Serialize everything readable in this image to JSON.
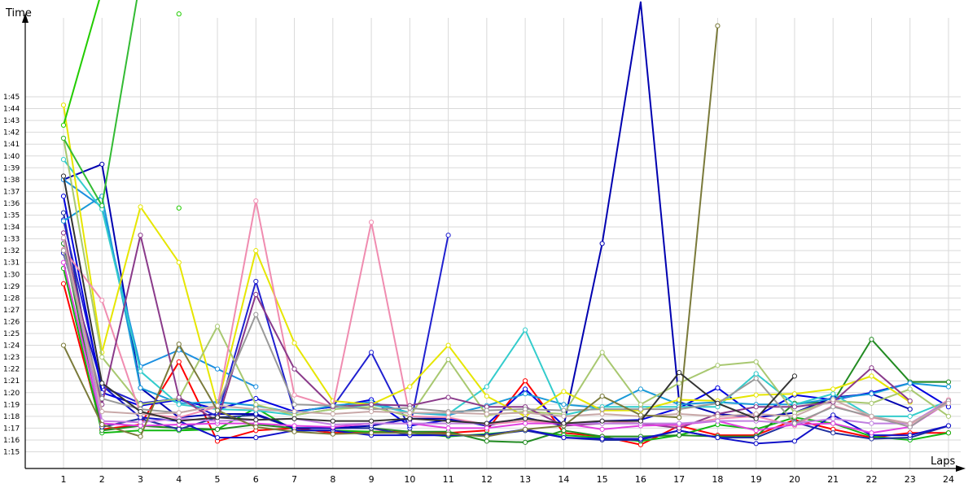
{
  "chart_data": {
    "type": "line",
    "xlabel": "Laps",
    "ylabel": "Time",
    "x": [
      1,
      2,
      3,
      4,
      5,
      6,
      7,
      8,
      9,
      10,
      11,
      12,
      13,
      14,
      15,
      16,
      17,
      18,
      19,
      20,
      21,
      22,
      23,
      24
    ],
    "y_ticks": [
      "1:15",
      "1:16",
      "1:17",
      "1:18",
      "1:19",
      "1:20",
      "1:21",
      "1:22",
      "1:23",
      "1:24",
      "1:25",
      "1:26",
      "1:27",
      "1:28",
      "1:29",
      "1:30",
      "1:31",
      "1:32",
      "1:33",
      "1:34",
      "1:35",
      "1:36",
      "1:37",
      "1:38",
      "1:39",
      "1:40",
      "1:41",
      "1:42",
      "1:43",
      "1:44",
      "1:45"
    ],
    "ylim_seconds": [
      74,
      106.5
    ],
    "grid": true,
    "series": [
      {
        "color": "#ff0000",
        "values": [
          89.2,
          76.9,
          77.3,
          82.6,
          75.9,
          76.8,
          77.0,
          76.6,
          76.7,
          76.7,
          76.6,
          76.8,
          81.0,
          76.6,
          76.3,
          75.6,
          77.2,
          76.4,
          76.4,
          77.7,
          76.9,
          76.2,
          76.6,
          76.6
        ]
      },
      {
        "color": "#11b811",
        "values": [
          90.5,
          76.6,
          76.8,
          76.8,
          76.9,
          78.7,
          76.8,
          76.8,
          76.7,
          76.6,
          76.3,
          76.5,
          76.8,
          76.4,
          76.2,
          75.9,
          76.4,
          77.3,
          76.9,
          77.9,
          77.4,
          76.3,
          76.0,
          76.6
        ]
      },
      {
        "color": "#228b22",
        "values": [
          92.6,
          76.8,
          77.2,
          77.0,
          76.9,
          77.3,
          77.0,
          77.0,
          77.0,
          76.7,
          76.7,
          75.9,
          75.8,
          76.8,
          76.3,
          76.3,
          76.4,
          76.3,
          76.3,
          79.1,
          79.2,
          84.5,
          80.9,
          80.9
        ]
      },
      {
        "color": "#1f2f9f",
        "values": [
          95.2,
          77.1,
          77.8,
          76.9,
          77.9,
          78.1,
          77.0,
          77.0,
          77.0,
          76.4,
          76.4,
          76.4,
          76.8,
          76.2,
          76.0,
          76.0,
          76.8,
          76.2,
          76.2,
          77.5,
          76.6,
          76.1,
          76.2,
          77.2
        ]
      },
      {
        "color": "#1010c8",
        "values": [
          91.8,
          80.6,
          77.9,
          77.6,
          76.2,
          76.2,
          76.8,
          76.8,
          76.4,
          76.4,
          76.4,
          76.4,
          76.9,
          76.2,
          76.1,
          76.1,
          76.8,
          76.2,
          75.7,
          75.9,
          78.1,
          76.4,
          76.4,
          77.2
        ]
      },
      {
        "color": "#0000b0",
        "values": [
          98.0,
          99.3,
          80.4,
          77.9,
          78.2,
          78.2,
          77.0,
          77.0,
          77.2,
          77.8,
          77.8,
          77.2,
          77.9,
          77.2,
          92.6,
          113.0,
          79.2,
          78.2,
          77.9,
          78.3,
          79.6,
          79.9,
          78.6,
          null
        ]
      },
      {
        "color": "#2020d0",
        "values": [
          94.6,
          80.5,
          79.1,
          79.5,
          78.0,
          89.4,
          78.4,
          78.8,
          83.4,
          77.0,
          93.3,
          null,
          null,
          null,
          null,
          null,
          null,
          null,
          null,
          null,
          null,
          null,
          null,
          null
        ]
      },
      {
        "color": "#0000e0",
        "values": [
          96.6,
          80.0,
          78.9,
          79.4,
          78.6,
          79.5,
          78.4,
          78.8,
          79.4,
          77.2,
          77.7,
          77.3,
          80.3,
          77.2,
          77.6,
          77.7,
          78.7,
          80.4,
          78.0,
          79.8,
          79.4,
          80.0,
          80.8,
          78.8
        ]
      },
      {
        "color": "#1a9ad8",
        "values": [
          94.5,
          96.6,
          80.4,
          79.1,
          79.2,
          78.9,
          78.3,
          78.9,
          79.2,
          78.3,
          78.1,
          78.9,
          79.9,
          79.0,
          78.7,
          80.3,
          79.0,
          79.2,
          79.0,
          79.0,
          79.5,
          79.9,
          80.8,
          80.5
        ]
      },
      {
        "color": "#1b8fe0",
        "values": [
          98.0,
          95.7,
          82.2,
          83.6,
          82.0,
          80.5,
          null,
          null,
          null,
          null,
          null,
          null,
          null,
          null,
          null,
          null,
          null,
          null,
          null,
          null,
          null,
          null,
          null,
          null
        ]
      },
      {
        "color": "#33cccc",
        "values": [
          99.7,
          95.5,
          81.8,
          79.0,
          78.6,
          78.5,
          78.1,
          78.6,
          79.0,
          78.3,
          78.2,
          80.5,
          85.3,
          78.1,
          78.8,
          78.8,
          78.8,
          78.8,
          81.6,
          79.0,
          79.9,
          78.0,
          78.0,
          79.3
        ]
      },
      {
        "color": "#e6e600",
        "values": [
          104.3,
          83.4,
          95.7,
          91.0,
          78.9,
          92.0,
          84.2,
          79.3,
          79.0,
          80.5,
          84.0,
          79.7,
          78.0,
          80.1,
          78.5,
          78.5,
          79.4,
          79.3,
          79.8,
          79.9,
          80.3,
          81.4,
          79.2,
          null
        ]
      },
      {
        "color": "#a8c870",
        "values": [
          101.5,
          83.0,
          79.0,
          79.5,
          85.6,
          79.0,
          78.1,
          78.6,
          78.8,
          78.0,
          82.8,
          78.1,
          78.4,
          78.2,
          83.4,
          79.0,
          80.8,
          82.3,
          82.6,
          78.3,
          79.3,
          79.1,
          80.3,
          78.0
        ]
      },
      {
        "color": "#f08cb0",
        "values": [
          92.1,
          87.8,
          78.2,
          77.9,
          78.8,
          96.2,
          79.8,
          78.8,
          94.4,
          78.0,
          77.9,
          77.3,
          77.6,
          77.4,
          77.6,
          77.4,
          77.2,
          77.8,
          78.0,
          77.2,
          78.9,
          77.9,
          77.3,
          79.4
        ]
      },
      {
        "color": "#8a3a8a",
        "values": [
          93.5,
          79.0,
          93.3,
          79.6,
          77.6,
          88.3,
          82.0,
          78.8,
          79.0,
          78.9,
          79.6,
          78.8,
          78.8,
          77.2,
          77.4,
          77.4,
          77.0,
          78.2,
          78.8,
          78.8,
          79.2,
          82.1,
          79.3,
          null
        ]
      },
      {
        "color": "#e040e0",
        "values": [
          91.0,
          77.4,
          77.2,
          77.3,
          77.4,
          77.4,
          77.2,
          77.1,
          77.4,
          77.4,
          77.0,
          77.0,
          77.4,
          77.4,
          76.9,
          77.2,
          77.3,
          77.6,
          76.8,
          77.3,
          77.4,
          76.6,
          77.1,
          79.2
        ]
      },
      {
        "color": "#c080e0",
        "values": [
          93.0,
          77.6,
          77.5,
          77.8,
          77.6,
          77.7,
          77.8,
          77.3,
          77.4,
          77.4,
          77.4,
          77.4,
          77.8,
          77.4,
          77.4,
          77.4,
          77.4,
          77.6,
          77.6,
          77.4,
          77.8,
          77.4,
          77.4,
          79.3
        ]
      },
      {
        "color": "#999999",
        "values": [
          92.0,
          79.5,
          78.6,
          78.3,
          78.9,
          86.6,
          79.0,
          78.9,
          78.6,
          78.7,
          78.4,
          78.5,
          78.6,
          78.5,
          78.6,
          78.6,
          78.6,
          79.1,
          81.2,
          77.4,
          78.8,
          78.0,
          77.1,
          79.3
        ]
      },
      {
        "color": "#c8a8a8",
        "values": [
          93.1,
          78.4,
          78.2,
          78.3,
          78.9,
          78.6,
          78.4,
          78.2,
          78.4,
          78.3,
          78.3,
          78.2,
          78.3,
          78.0,
          78.2,
          78.0,
          78.2,
          78.0,
          78.2,
          78.0,
          79.4,
          78.0,
          77.4,
          79.1
        ]
      },
      {
        "color": "#7a7a3a",
        "values": [
          84.0,
          77.3,
          76.3,
          84.1,
          78.5,
          77.1,
          76.7,
          76.5,
          76.6,
          76.6,
          76.5,
          76.3,
          76.9,
          77.2,
          79.7,
          78.1,
          77.9,
          111.0,
          null,
          null,
          null,
          null,
          null,
          null
        ]
      },
      {
        "color": "#333333",
        "values": [
          98.3,
          80.8,
          78.4,
          77.6,
          77.9,
          77.7,
          77.8,
          77.6,
          77.6,
          77.8,
          77.6,
          77.4,
          77.8,
          77.4,
          77.6,
          77.6,
          81.7,
          79.1,
          77.8,
          81.4,
          null,
          null,
          null,
          null
        ]
      },
      {
        "color": "#22cc00",
        "values": [
          102.6,
          114.0,
          null,
          95.6,
          null,
          null,
          null,
          null,
          null,
          null,
          null,
          null,
          null,
          null,
          null,
          null,
          null,
          null,
          null,
          null,
          null,
          null,
          null,
          null
        ]
      },
      {
        "color": "#33bb33",
        "values": [
          101.5,
          95.8,
          115.0,
          null,
          null,
          null,
          null,
          null,
          null,
          null,
          null,
          null,
          null,
          null,
          null,
          null,
          null,
          null,
          null,
          null,
          null,
          null,
          null,
          null
        ]
      },
      {
        "color": "#22cc00",
        "values": [
          null,
          null,
          null,
          112.0,
          null,
          null,
          null,
          null,
          null,
          null,
          null,
          null,
          null,
          null,
          null,
          null,
          null,
          null,
          null,
          null,
          null,
          null,
          null,
          null
        ]
      }
    ]
  }
}
